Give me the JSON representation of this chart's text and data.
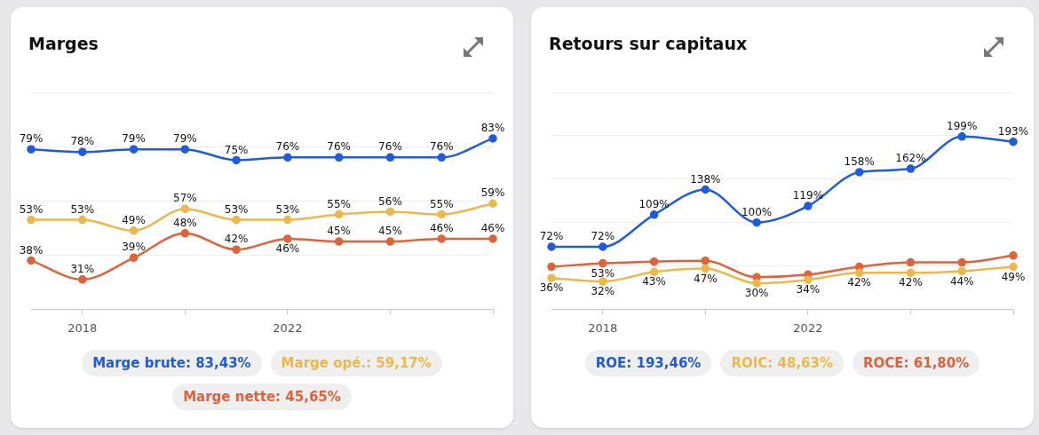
{
  "chart_data": [
    {
      "type": "line",
      "title": "Marges",
      "categories": [
        null,
        "2018",
        null,
        null,
        null,
        "2022",
        null,
        null,
        null,
        null
      ],
      "ylim": [
        20,
        100
      ],
      "yticks": [
        {
          "value": 20,
          "label": null
        },
        {
          "value": 40,
          "label": null
        },
        {
          "value": 60,
          "label": null
        },
        {
          "value": 80,
          "label": null
        },
        {
          "value": 100,
          "label": null
        }
      ],
      "grid": "y",
      "tick_labels": "x",
      "legend": "bottom",
      "marker": "circle",
      "series": [
        {
          "name": "Marge brute: 83,43%",
          "color": "#1f5be0",
          "values": [
            79,
            78,
            79,
            79,
            75,
            76,
            76,
            76,
            76,
            83
          ],
          "value_labels": [
            "79%",
            "78%",
            "79%",
            "79%",
            "75%",
            "76%",
            "76%",
            "76%",
            "76%",
            "83%"
          ]
        },
        {
          "name": "Marge opé.: 59,17%",
          "color": "#edb84a",
          "values": [
            53,
            53,
            49,
            57,
            53,
            53,
            55,
            56,
            55,
            59
          ],
          "value_labels": [
            "53%",
            "53%",
            "49%",
            "57%",
            "53%",
            "53%",
            "55%",
            "56%",
            "55%",
            "59%"
          ]
        },
        {
          "name": "Marge nette: 45,65%",
          "color": "#e0623a",
          "values": [
            38,
            31,
            39,
            48,
            42,
            46,
            45,
            45,
            46,
            46
          ],
          "value_labels": [
            "38%",
            "31%",
            "39%",
            "48%",
            "42%",
            "46%",
            "45%",
            "45%",
            "46%",
            "46%"
          ]
        }
      ]
    },
    {
      "type": "line",
      "title": "Retours sur capitaux",
      "categories": [
        null,
        "2018",
        null,
        null,
        null,
        "2022",
        null,
        null,
        null,
        null
      ],
      "ylim": [
        0,
        250
      ],
      "yticks": [
        {
          "value": 0,
          "label": null
        },
        {
          "value": 50,
          "label": null
        },
        {
          "value": 100,
          "label": null
        },
        {
          "value": 150,
          "label": null
        },
        {
          "value": 200,
          "label": null
        },
        {
          "value": 250,
          "label": null
        }
      ],
      "grid": "y",
      "tick_labels": "x",
      "legend": "bottom",
      "marker": "circle",
      "series": [
        {
          "name": "ROE: 193,46%",
          "color": "#1f5be0",
          "values": [
            72,
            72,
            109,
            138,
            100,
            119,
            158,
            162,
            199,
            193
          ],
          "value_labels": [
            "72%",
            "72%",
            "109%",
            "138%",
            "100%",
            "119%",
            "158%",
            "162%",
            "199%",
            "193%"
          ]
        },
        {
          "name": "ROIC: 48,63%",
          "color": "#edb84a",
          "values": [
            36,
            32,
            43,
            47,
            30,
            34,
            42,
            42,
            44,
            49
          ],
          "value_labels": [
            "36%",
            "32%",
            "43%",
            "47%",
            "30%",
            "34%",
            "42%",
            "42%",
            "44%",
            "49%"
          ]
        },
        {
          "name": "ROCE: 61,80%",
          "color": "#e0623a",
          "values": [
            49,
            53,
            55,
            56,
            37,
            40,
            49,
            54,
            54,
            62
          ],
          "value_labels": [
            null,
            "53%",
            null,
            null,
            null,
            null,
            null,
            null,
            null,
            null
          ]
        }
      ]
    }
  ]
}
